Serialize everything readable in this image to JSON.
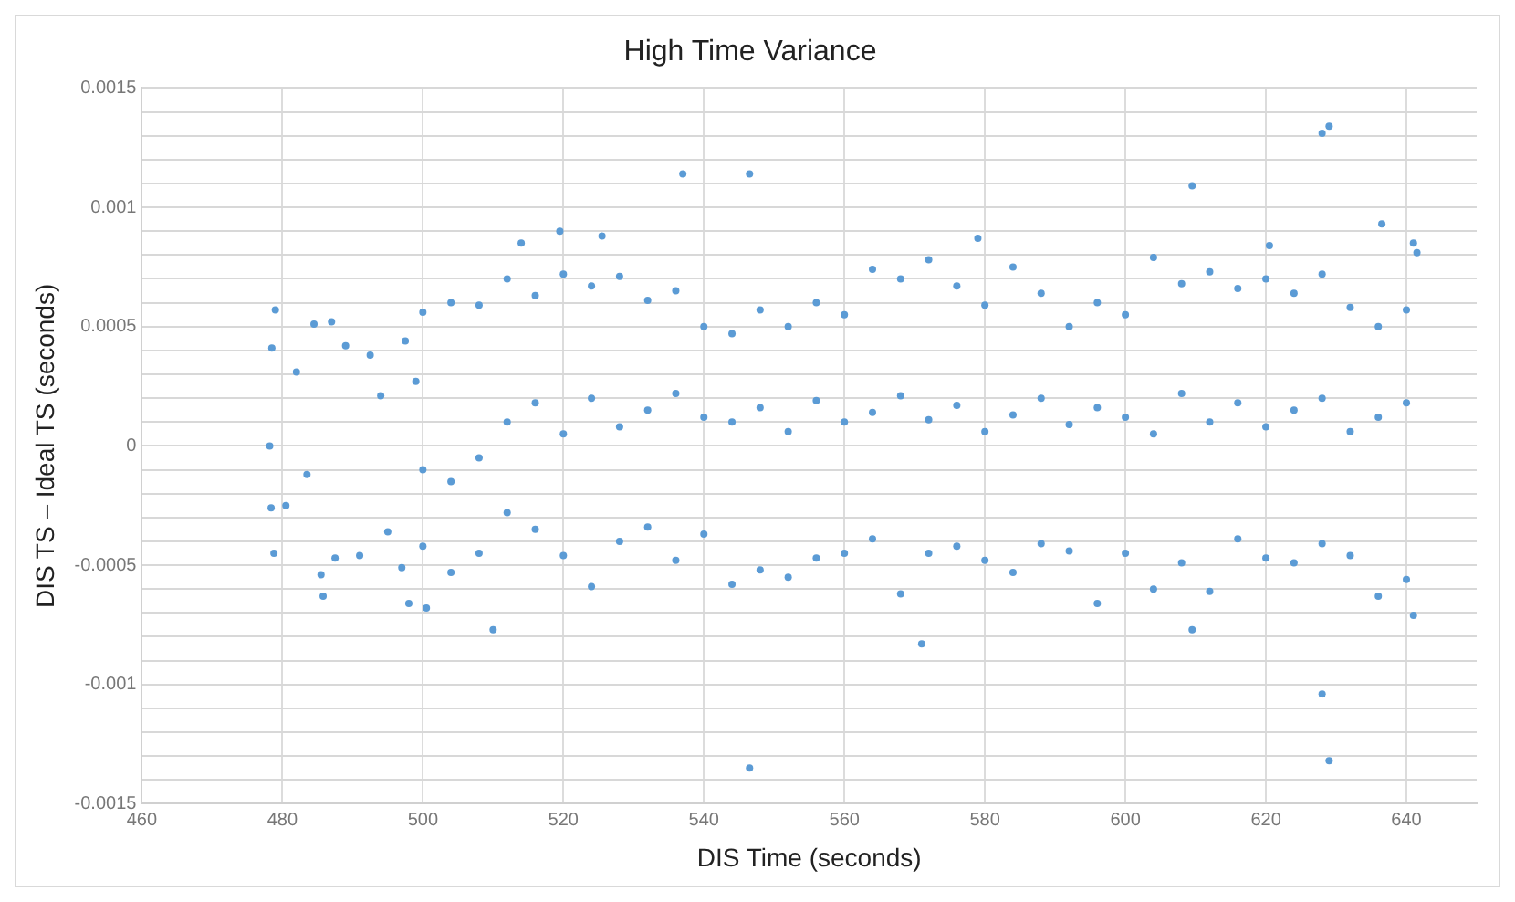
{
  "chart_data": {
    "type": "scatter",
    "title": "High Time Variance",
    "xlabel": "DIS Time (seconds)",
    "ylabel": "DIS TS – Ideal TS (seconds)",
    "xlim": [
      460,
      650
    ],
    "xticks": [
      460,
      480,
      500,
      520,
      540,
      560,
      580,
      600,
      620,
      640
    ],
    "ylim": [
      -0.0015,
      0.0015
    ],
    "yticks": [
      -0.0015,
      {
        "value": -0.0014,
        "label": null
      },
      {
        "value": -0.0013,
        "label": null
      },
      {
        "value": -0.0012,
        "label": null
      },
      {
        "value": -0.0011,
        "label": null
      },
      -0.001,
      {
        "value": -0.0009,
        "label": null
      },
      {
        "value": -0.0008,
        "label": null
      },
      {
        "value": -0.0007,
        "label": null
      },
      {
        "value": -0.0006,
        "label": null
      },
      -0.0005,
      {
        "value": -0.0004,
        "label": null
      },
      {
        "value": -0.0003,
        "label": null
      },
      {
        "value": -0.0002,
        "label": null
      },
      {
        "value": -0.0001,
        "label": null
      },
      0,
      {
        "value": 0.0001,
        "label": null
      },
      {
        "value": 0.0002,
        "label": null
      },
      {
        "value": 0.0003,
        "label": null
      },
      {
        "value": 0.0004,
        "label": null
      },
      0.0005,
      {
        "value": 0.0006,
        "label": null
      },
      {
        "value": 0.0007,
        "label": null
      },
      {
        "value": 0.0008,
        "label": null
      },
      {
        "value": 0.0009,
        "label": null
      },
      0.001,
      {
        "value": 0.0011,
        "label": null
      },
      {
        "value": 0.0012,
        "label": null
      },
      {
        "value": 0.0013,
        "label": null
      },
      {
        "value": 0.0014,
        "label": null
      },
      0.0015
    ],
    "grid": true,
    "marker": "circle",
    "legend": false,
    "series": [
      {
        "color": "#5b9bd5",
        "x": [
          478.2,
          478.5,
          479,
          478.4,
          478.8,
          480.5,
          482,
          483.5,
          484.5,
          485.5,
          485.8,
          487,
          487.5,
          489,
          491,
          492.5,
          494,
          495,
          497,
          497.5,
          499,
          500,
          500,
          500,
          504,
          504,
          504,
          508,
          508,
          508,
          512,
          512,
          512,
          516,
          516,
          516,
          520,
          520,
          520,
          524,
          524,
          524,
          528,
          528,
          528,
          532,
          532,
          532,
          536,
          536,
          536,
          540,
          540,
          540,
          544,
          544,
          544,
          548,
          548,
          548,
          552,
          552,
          552,
          556,
          556,
          556,
          560,
          560,
          560,
          564,
          564,
          564,
          568,
          568,
          568,
          572,
          572,
          572,
          576,
          576,
          576,
          580,
          580,
          580,
          584,
          584,
          584,
          588,
          588,
          588,
          592,
          592,
          592,
          596,
          596,
          596,
          600,
          600,
          600,
          604,
          604,
          604,
          608,
          608,
          608,
          612,
          612,
          612,
          616,
          616,
          616,
          620,
          620,
          620,
          624,
          624,
          624,
          628,
          628,
          628,
          632,
          632,
          632,
          636,
          636,
          636,
          640,
          640,
          640,
          537,
          546.5,
          609.5,
          628,
          629,
          636.5,
          641,
          641.5,
          546.5,
          629,
          628,
          571,
          609.5,
          510,
          500.5,
          498,
          641,
          519.5,
          514,
          525.5,
          579,
          620.5
        ],
        "values": [
          0.0,
          0.00041,
          0.00057,
          -0.00026,
          -0.00045,
          -0.00025,
          0.00031,
          -0.00012,
          0.00051,
          -0.00054,
          -0.00063,
          0.00052,
          -0.00047,
          0.00042,
          -0.00046,
          0.00038,
          0.00021,
          -0.00036,
          -0.00051,
          0.00044,
          0.00027,
          0.00056,
          -0.0001,
          -0.00042,
          0.0006,
          -0.00015,
          -0.00053,
          0.00059,
          -5e-05,
          -0.00045,
          0.0007,
          0.0001,
          -0.00028,
          0.00063,
          0.00018,
          -0.00035,
          0.00072,
          5e-05,
          -0.00046,
          0.00067,
          0.0002,
          -0.00059,
          0.00071,
          8e-05,
          -0.0004,
          0.00061,
          0.00015,
          -0.00034,
          0.00065,
          0.00022,
          -0.00048,
          0.0005,
          0.00012,
          -0.00037,
          0.00047,
          0.0001,
          -0.00058,
          0.00057,
          0.00016,
          -0.00052,
          0.0005,
          6e-05,
          -0.00055,
          0.0006,
          0.00019,
          -0.00047,
          0.00055,
          0.0001,
          -0.00045,
          0.00074,
          0.00014,
          -0.00039,
          0.0007,
          0.00021,
          -0.00062,
          0.00078,
          0.00011,
          -0.00045,
          0.00067,
          0.00017,
          -0.00042,
          0.00059,
          6e-05,
          -0.00048,
          0.00075,
          0.00013,
          -0.00053,
          0.00064,
          0.0002,
          -0.00041,
          0.0005,
          9e-05,
          -0.00044,
          0.0006,
          0.00016,
          -0.00066,
          0.00055,
          0.00012,
          -0.00045,
          0.00079,
          5e-05,
          -0.0006,
          0.00068,
          0.00022,
          -0.00049,
          0.00073,
          0.0001,
          -0.00061,
          0.00066,
          0.00018,
          -0.00039,
          0.0007,
          8e-05,
          -0.00047,
          0.00064,
          0.00015,
          -0.00049,
          0.00072,
          0.0002,
          -0.00041,
          0.00058,
          6e-05,
          -0.00046,
          0.0005,
          0.00012,
          -0.00063,
          0.00057,
          0.00018,
          -0.00056,
          0.00114,
          0.00114,
          0.00109,
          0.00131,
          0.00134,
          0.00093,
          0.00085,
          0.00081,
          -0.00135,
          -0.00132,
          -0.00104,
          -0.00083,
          -0.00077,
          -0.00077,
          -0.00068,
          -0.00066,
          -0.00071,
          0.0009,
          0.00085,
          0.00088,
          0.00087,
          0.00084
        ]
      }
    ]
  }
}
